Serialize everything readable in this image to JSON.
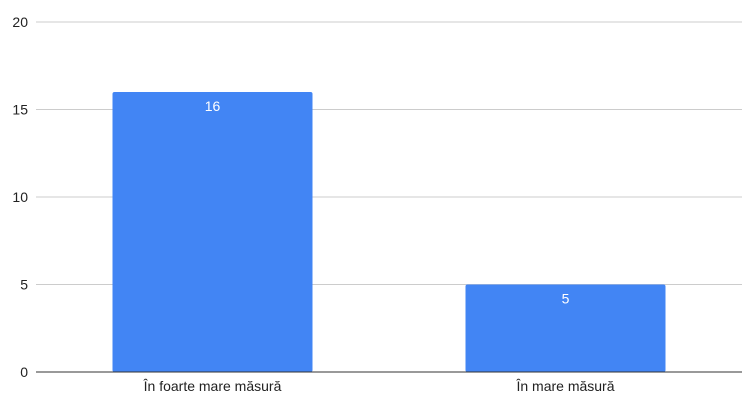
{
  "chart_data": {
    "type": "bar",
    "categories": [
      "În foarte mare măsură",
      "În mare măsură"
    ],
    "values": [
      16,
      5
    ],
    "data_labels": [
      "16",
      "5"
    ],
    "title": "",
    "xlabel": "",
    "ylabel": "",
    "ylim": [
      0,
      20
    ],
    "yticks": [
      "0",
      "5",
      "10",
      "15",
      "20"
    ],
    "grid": true,
    "legend": "none",
    "bar_color": "#4285f4",
    "grid_color": "#cccccc",
    "axis_color": "#333333"
  }
}
